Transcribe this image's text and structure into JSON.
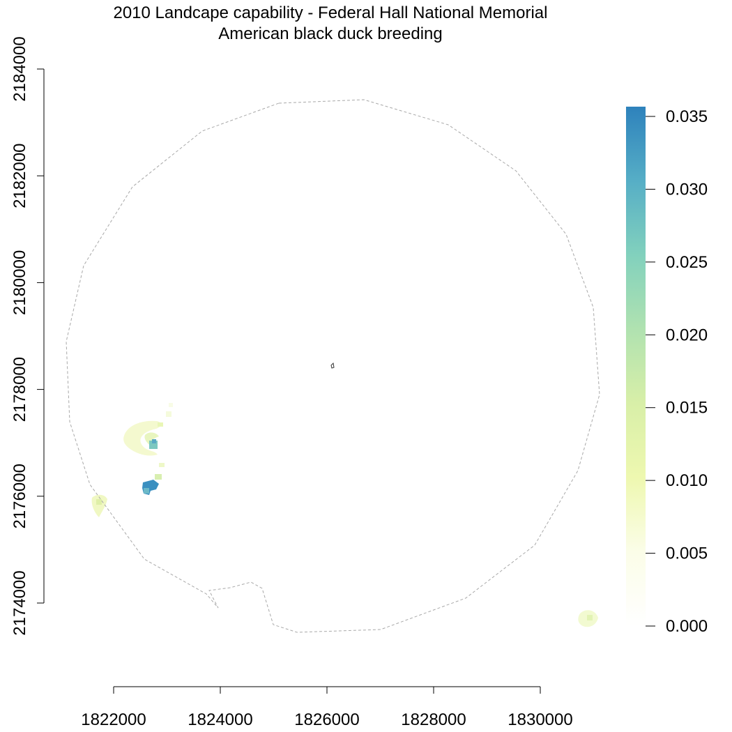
{
  "title": {
    "line1": "2010 Landcape capability - Federal Hall National Memorial",
    "line2": "American black duck breeding"
  },
  "axes": {
    "x": {
      "ticks": [
        "1822000",
        "1824000",
        "1826000",
        "1828000",
        "1830000"
      ],
      "values": [
        1822000,
        1824000,
        1826000,
        1828000,
        1830000
      ]
    },
    "y": {
      "ticks": [
        "2174000",
        "2176000",
        "2178000",
        "2180000",
        "2182000",
        "2184000"
      ],
      "values": [
        2174000,
        2176000,
        2178000,
        2180000,
        2182000,
        2184000
      ]
    }
  },
  "legend": {
    "type": "continuous-color-bar",
    "position": "right",
    "labels": [
      "0.035",
      "0.030",
      "0.025",
      "0.020",
      "0.015",
      "0.010",
      "0.005",
      "0.000"
    ],
    "values": [
      0.035,
      0.03,
      0.025,
      0.02,
      0.015,
      0.01,
      0.005,
      0.0
    ],
    "colors": {
      "0.000": "#ffffff",
      "0.005": "#fbfde8",
      "0.010": "#eef8b0",
      "0.015": "#d8efa8",
      "0.020": "#b0e2b0",
      "0.025": "#82d1bd",
      "0.030": "#56aec6",
      "0.035": "#2e82bc"
    }
  },
  "map": {
    "boundary_style": "dashed-gray",
    "features": [
      "buffer-boundary",
      "park-unit-outline",
      "capability-raster"
    ]
  }
}
